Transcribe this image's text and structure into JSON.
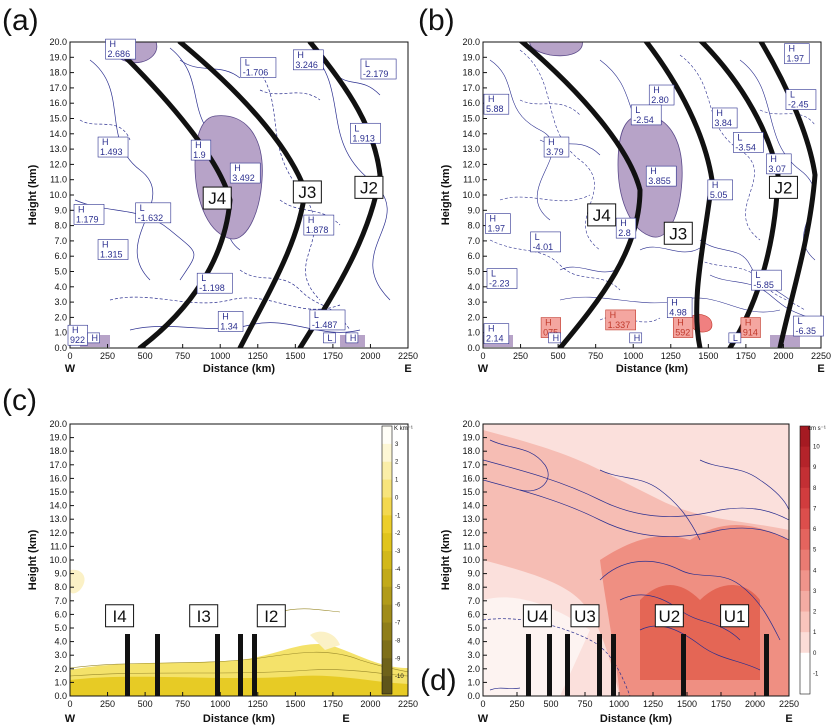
{
  "chart_data": [
    {
      "id": "a",
      "panel_label": "(a)",
      "type": "contour",
      "xlabel": "Distance (km)",
      "ylabel": "Height (km)",
      "xlim": [
        0,
        2250
      ],
      "ylim": [
        0,
        20
      ],
      "x_ticks": [
        "0",
        "250",
        "500",
        "750",
        "1000",
        "1250",
        "1500",
        "1750",
        "2000",
        "2250"
      ],
      "y_ticks": [
        "0.0",
        "1.0",
        "2.0",
        "3.0",
        "4.0",
        "5.0",
        "6.0",
        "7.0",
        "8.0",
        "9.0",
        "10.0",
        "11.0",
        "12.0",
        "13.0",
        "14.0",
        "15.0",
        "16.0",
        "17.0",
        "18.0",
        "19.0",
        "20.0"
      ],
      "x_end_labels": [
        "W",
        "E"
      ],
      "hl_labels": [
        {
          "kind": "H",
          "value": "2.686",
          "x": 250,
          "y": 19.6
        },
        {
          "kind": "L",
          "value": "-1.706",
          "x": 1150,
          "y": 18.4
        },
        {
          "kind": "H",
          "value": "3.246",
          "x": 1500,
          "y": 18.9
        },
        {
          "kind": "L",
          "value": "-2.179",
          "x": 1950,
          "y": 18.3
        },
        {
          "kind": "H",
          "value": "1.493",
          "x": 200,
          "y": 13.2
        },
        {
          "kind": "H",
          "value": "1.9",
          "x": 820,
          "y": 13.0
        },
        {
          "kind": "L",
          "value": "1.913",
          "x": 1880,
          "y": 14.1
        },
        {
          "kind": "H",
          "value": "3.492",
          "x": 1080,
          "y": 11.5
        },
        {
          "kind": "H",
          "value": "1.179",
          "x": 40,
          "y": 8.8
        },
        {
          "kind": "L",
          "value": "-1.632",
          "x": 450,
          "y": 8.9
        },
        {
          "kind": "H",
          "value": "1.878",
          "x": 1570,
          "y": 8.1
        },
        {
          "kind": "H",
          "value": "1.315",
          "x": 200,
          "y": 6.5
        },
        {
          "kind": "L",
          "value": "-1.198",
          "x": 860,
          "y": 4.3
        },
        {
          "kind": "L",
          "value": "-1.487",
          "x": 1610,
          "y": 1.9
        },
        {
          "kind": "H",
          "value": "1.34",
          "x": 1000,
          "y": 1.8
        },
        {
          "kind": "H",
          "value": "922",
          "x": 0,
          "y": 0.9
        },
        {
          "kind": "H",
          "value": "",
          "x": 130,
          "y": 0.4
        },
        {
          "kind": "H",
          "value": "",
          "x": 1850,
          "y": 0.4
        },
        {
          "kind": "L",
          "value": "",
          "x": 1700,
          "y": 0.4
        }
      ],
      "boxed_labels": [
        {
          "text": "J4",
          "x": 980,
          "y": 9.8
        },
        {
          "text": "J3",
          "x": 1580,
          "y": 10.2
        },
        {
          "text": "J2",
          "x": 1990,
          "y": 10.5
        }
      ]
    },
    {
      "id": "b",
      "panel_label": "(b)",
      "type": "contour",
      "xlabel": "Distance (km)",
      "ylabel": "Height (km)",
      "xlim": [
        0,
        2250
      ],
      "ylim": [
        0,
        20
      ],
      "x_ticks": [
        "0",
        "250",
        "500",
        "750",
        "1000",
        "1250",
        "1500",
        "1750",
        "2000",
        "2250"
      ],
      "y_ticks": [
        "0.0",
        "1.0",
        "2.0",
        "3.0",
        "4.0",
        "5.0",
        "6.0",
        "7.0",
        "8.0",
        "9.0",
        "10.0",
        "11.0",
        "12.0",
        "13.0",
        "14.0",
        "15.0",
        "16.0",
        "17.0",
        "18.0",
        "19.0",
        "20.0"
      ],
      "x_end_labels": [
        "W",
        "E"
      ],
      "hl_labels": [
        {
          "kind": "H",
          "value": "1.97",
          "x": 2020,
          "y": 19.3
        },
        {
          "kind": "H",
          "value": "2.80",
          "x": 1120,
          "y": 16.6
        },
        {
          "kind": "H",
          "value": "5.88",
          "x": 20,
          "y": 16.0
        },
        {
          "kind": "L",
          "value": "-2.45",
          "x": 2030,
          "y": 16.3
        },
        {
          "kind": "L",
          "value": "-2.54",
          "x": 1000,
          "y": 15.3
        },
        {
          "kind": "H",
          "value": "3.84",
          "x": 1540,
          "y": 15.1
        },
        {
          "kind": "L",
          "value": "-3.54",
          "x": 1680,
          "y": 13.5
        },
        {
          "kind": "H",
          "value": "3.79",
          "x": 420,
          "y": 13.2
        },
        {
          "kind": "H",
          "value": "3.07",
          "x": 1900,
          "y": 12.1
        },
        {
          "kind": "H",
          "value": "3.855",
          "x": 1100,
          "y": 11.3
        },
        {
          "kind": "H",
          "value": "5.05",
          "x": 1510,
          "y": 10.4
        },
        {
          "kind": "H",
          "value": "1.97",
          "x": 30,
          "y": 8.2
        },
        {
          "kind": "L",
          "value": "-4.01",
          "x": 330,
          "y": 7.0
        },
        {
          "kind": "H",
          "value": "2.8",
          "x": 900,
          "y": 7.9
        },
        {
          "kind": "L",
          "value": "-2.23",
          "x": 40,
          "y": 4.6
        },
        {
          "kind": "L",
          "value": "-5.85",
          "x": 1800,
          "y": 4.5
        },
        {
          "kind": "H",
          "value": "4.98",
          "x": 1240,
          "y": 2.7
        },
        {
          "kind": "H",
          "value": "1.337",
          "x": 830,
          "y": 1.9
        },
        {
          "kind": "H",
          "value": "075",
          "x": 400,
          "y": 1.4
        },
        {
          "kind": "H",
          "value": "592",
          "x": 1280,
          "y": 1.4
        },
        {
          "kind": "H",
          "value": "914",
          "x": 1730,
          "y": 1.4
        },
        {
          "kind": "L",
          "value": "-6.35",
          "x": 2080,
          "y": 1.5
        },
        {
          "kind": "H",
          "value": "2.14",
          "x": 20,
          "y": 1.0
        },
        {
          "kind": "H",
          "value": "",
          "x": 450,
          "y": 0.4
        },
        {
          "kind": "H",
          "value": "",
          "x": 990,
          "y": 0.4
        },
        {
          "kind": "L",
          "value": "",
          "x": 1650,
          "y": 0.4
        }
      ],
      "boxed_labels": [
        {
          "text": "J4",
          "x": 790,
          "y": 8.7
        },
        {
          "text": "J3",
          "x": 1300,
          "y": 7.5
        },
        {
          "text": "J2",
          "x": 2000,
          "y": 10.5
        }
      ]
    },
    {
      "id": "c",
      "panel_label": "(c)",
      "type": "contour",
      "xlabel": "Distance (km)",
      "ylabel": "Height (km)",
      "xlim": [
        0,
        2250
      ],
      "ylim": [
        0,
        20
      ],
      "x_ticks": [
        "0",
        "250",
        "500",
        "750",
        "1000",
        "1250",
        "1500",
        "1750",
        "2000",
        "2250"
      ],
      "y_ticks": [
        "0.0",
        "1.0",
        "2.0",
        "3.0",
        "4.0",
        "5.0",
        "6.0",
        "7.0",
        "8.0",
        "9.0",
        "10.0",
        "11.0",
        "12.0",
        "13.0",
        "14.0",
        "15.0",
        "16.0",
        "17.0",
        "18.0",
        "19.0",
        "20.0"
      ],
      "x_end_labels": [
        "W",
        "E"
      ],
      "colorbar_unit": "K km⁻¹",
      "colorbar_ticks": [
        "3",
        "2",
        "1",
        "0",
        "-1",
        "-2",
        "-3",
        "-4",
        "-5",
        "-6",
        "-7",
        "-8",
        "-9",
        "-10"
      ],
      "boxed_labels": [
        {
          "text": "I4",
          "x": 330,
          "y": 5.9
        },
        {
          "text": "I3",
          "x": 890,
          "y": 5.9
        },
        {
          "text": "I2",
          "x": 1340,
          "y": 5.9
        }
      ]
    },
    {
      "id": "d",
      "panel_label": "(d)",
      "type": "contour",
      "xlabel": "Distance (km)",
      "ylabel": "Height (km)",
      "xlim": [
        0,
        2250
      ],
      "ylim": [
        0,
        20
      ],
      "x_ticks": [
        "0",
        "250",
        "500",
        "750",
        "1000",
        "1250",
        "1500",
        "1750",
        "2000",
        "2250"
      ],
      "y_ticks": [
        "0.0",
        "1.0",
        "2.0",
        "3.0",
        "4.0",
        "5.0",
        "6.0",
        "7.0",
        "8.0",
        "9.0",
        "10.0",
        "11.0",
        "12.0",
        "13.0",
        "14.0",
        "15.0",
        "16.0",
        "17.0",
        "18.0",
        "19.0",
        "20.0"
      ],
      "x_end_labels": [
        "W",
        "E"
      ],
      "colorbar_unit": "cm s⁻¹",
      "colorbar_ticks": [
        "10",
        "9",
        "8",
        "7",
        "6",
        "5",
        "4",
        "3",
        "2",
        "1",
        "0",
        "-1"
      ],
      "boxed_labels": [
        {
          "text": "U4",
          "x": 400,
          "y": 5.9
        },
        {
          "text": "U3",
          "x": 750,
          "y": 5.9
        },
        {
          "text": "U2",
          "x": 1370,
          "y": 5.9
        },
        {
          "text": "U1",
          "x": 1850,
          "y": 5.9
        }
      ]
    }
  ]
}
